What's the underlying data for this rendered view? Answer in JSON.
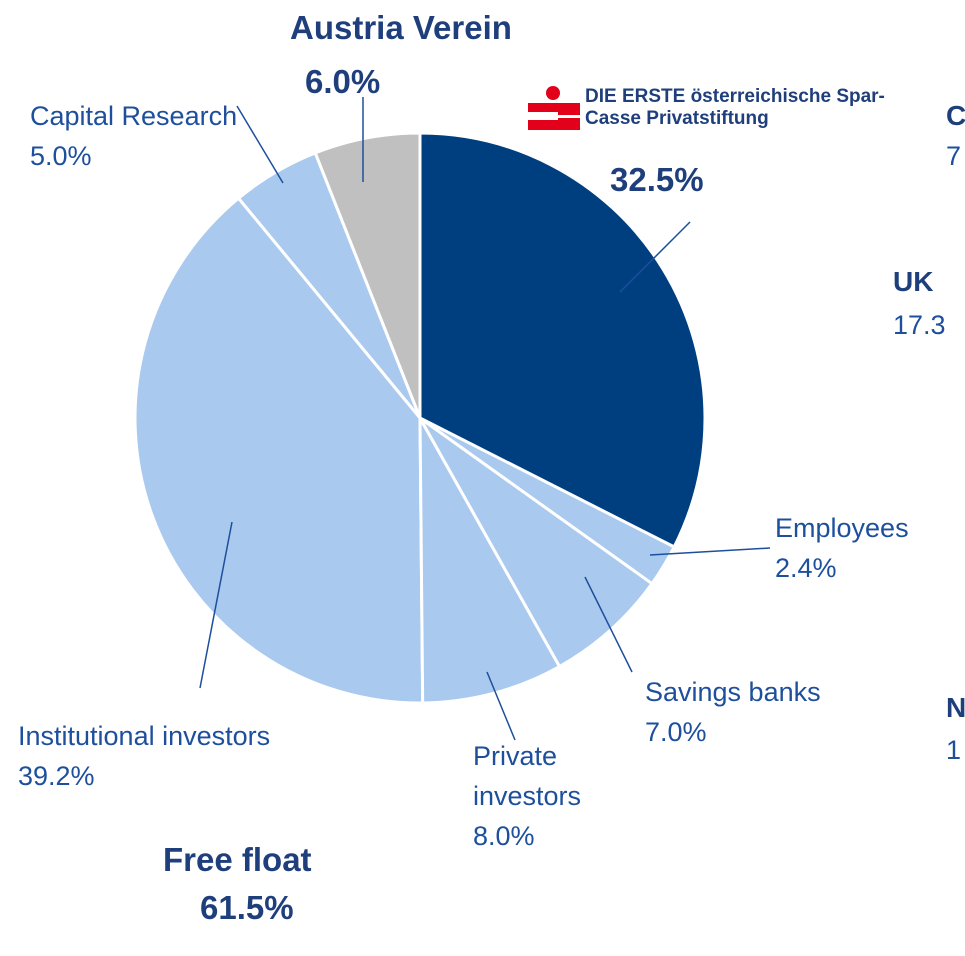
{
  "chart_data": {
    "type": "pie",
    "categories": [
      "DIE ERSTE österreichische Spar-Casse Privatstiftung",
      "Employees",
      "Savings banks",
      "Private investors",
      "Institutional investors",
      "Capital Research",
      "Austria Verein"
    ],
    "values": [
      32.5,
      2.4,
      7.0,
      8.0,
      39.2,
      5.0,
      6.0
    ],
    "value_labels": [
      "32.5%",
      "2.4%",
      "7.0%",
      "8.0%",
      "39.2%",
      "5.0%",
      "6.0%"
    ],
    "colors": [
      "#003f7f",
      "#a9c9ef",
      "#a9c9ef",
      "#a9c9ef",
      "#a9c9ef",
      "#a9c9ef",
      "#c0c0c0"
    ],
    "annotations": {
      "group_name": "Free float",
      "group_value": "61.5%",
      "right_fragments": [
        "C",
        "7",
        "UK",
        "17.3",
        "N",
        "1"
      ]
    }
  }
}
